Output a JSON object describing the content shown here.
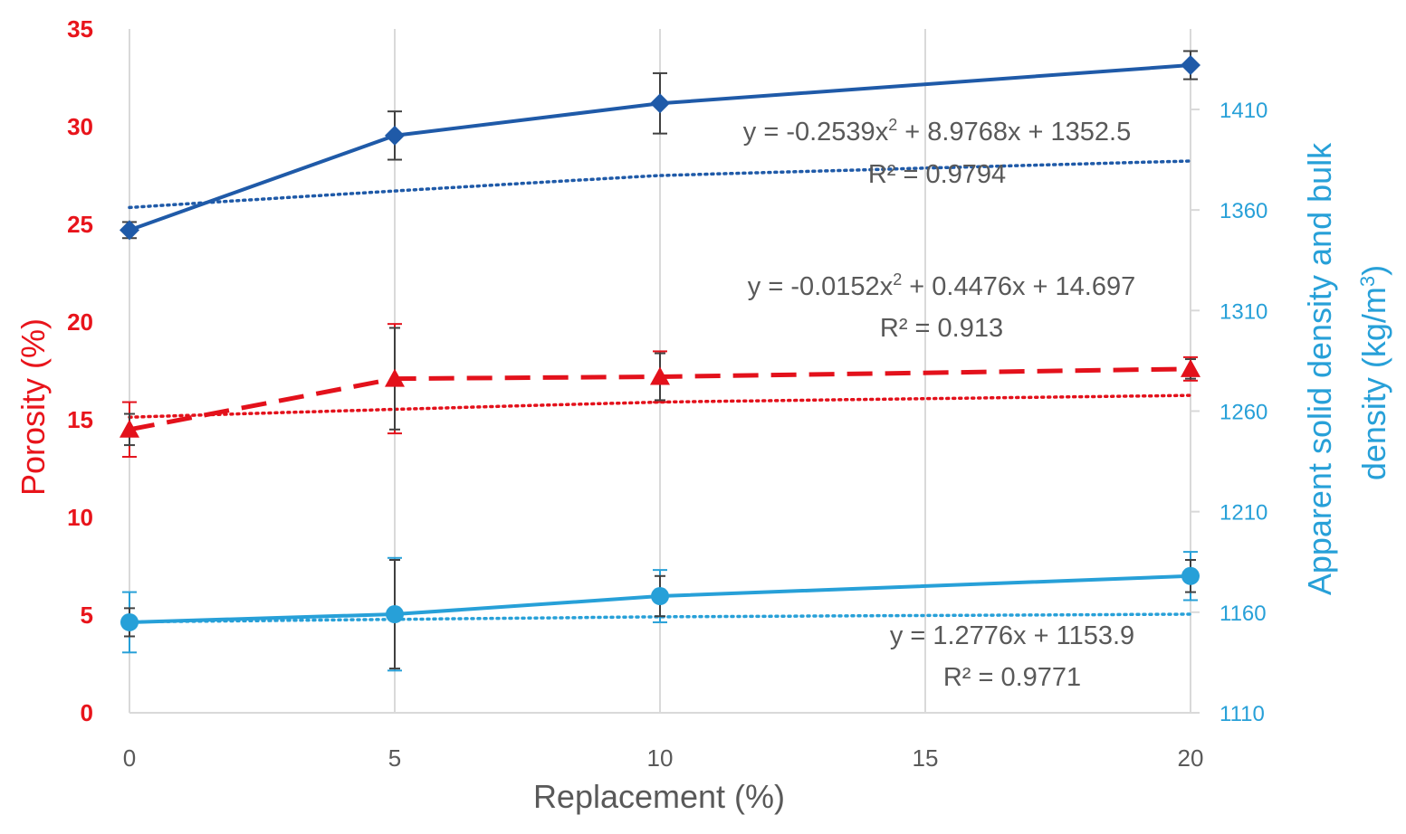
{
  "chart_data": {
    "type": "line",
    "xlabel": "Replacement (%)",
    "ylabel_left": "Porosity (%)",
    "ylabel_right_line1": "Apparent solid density and bulk",
    "ylabel_right_line2_pre": "density (kg/m",
    "ylabel_right_line2_sup": "3",
    "ylabel_right_line2_post": ")",
    "categories": [
      "0",
      "5",
      "10",
      "15",
      "20"
    ],
    "x": [
      0,
      5,
      10,
      20
    ],
    "ylim_left": [
      0,
      35
    ],
    "yticks_left": [
      0,
      5,
      10,
      15,
      20,
      25,
      30,
      35
    ],
    "ylim_right": [
      1110,
      1450
    ],
    "yticks_right": [
      1110,
      1160,
      1210,
      1260,
      1310,
      1360,
      1410
    ],
    "grid": "vertical",
    "colors": {
      "porosity": "#e3111b",
      "apparent_density": "#1f5aa8",
      "bulk_density": "#27a0d8",
      "error_bar": "#404040",
      "tick_left": "#e8141b",
      "tick_right": "#27a0d8",
      "text": "#595959",
      "grid": "#d9d9d9"
    },
    "series": [
      {
        "axis": "right",
        "marker": "diamond",
        "color": "#1f5aa8",
        "values": [
          1350,
          1397,
          1413,
          1432
        ],
        "errors": [
          4,
          12,
          15,
          7
        ],
        "error_color": "#404040",
        "trend": {
          "type": "poly2",
          "a": -0.2539,
          "b": 8.9768,
          "c": 1352.5
        },
        "equation_pre": "y = -0.2539x",
        "equation_sup": "2",
        "equation_post": " + 8.9768x + 1352.5",
        "r2": "R² = 0.9794"
      },
      {
        "axis": "left",
        "marker": "triangle",
        "color": "#e3111b",
        "values": [
          14.5,
          17.1,
          17.2,
          17.6
        ],
        "errors": [
          1.4,
          2.8,
          1.3,
          0.6
        ],
        "error_color": "#e3111b",
        "inner_errors": [
          0.8,
          2.6,
          1.2,
          0.5
        ],
        "inner_error_color": "#404040",
        "trend": {
          "type": "poly2",
          "a": -0.0152,
          "b": 0.4476,
          "c": 14.697
        },
        "equation_pre": "y = -0.0152x",
        "equation_sup": "2",
        "equation_post": " + 0.4476x + 14.697",
        "r2": "R² = 0.913"
      },
      {
        "axis": "right",
        "marker": "circle",
        "color": "#27a0d8",
        "values": [
          1155,
          1159,
          1168,
          1178
        ],
        "errors": [
          15,
          28,
          13,
          12
        ],
        "error_color": "#27a0d8",
        "inner_errors": [
          7,
          27,
          10,
          8
        ],
        "inner_error_color": "#404040",
        "trend": {
          "type": "linear",
          "a": 1.2776,
          "b": 1153.9
        },
        "equation": "y = 1.2776x + 1153.9",
        "r2": "R² = 0.9771"
      }
    ]
  }
}
